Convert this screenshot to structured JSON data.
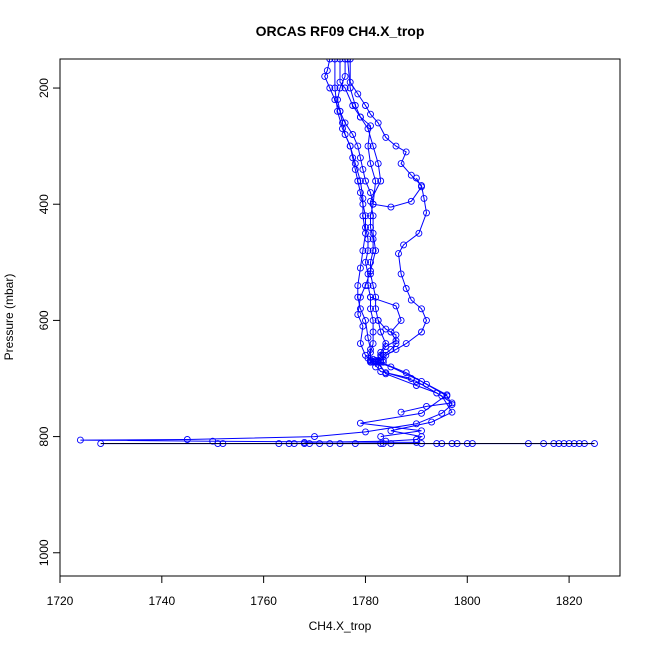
{
  "chart_data": {
    "type": "scatter",
    "title": "ORCAS RF09 CH4.X_trop",
    "xlabel": "CH4.X_trop",
    "ylabel": "Pressure (mbar)",
    "xlim": [
      1720,
      1830
    ],
    "ylim": [
      1040,
      150
    ],
    "y_reversed": true,
    "grid": false,
    "color": "#0000ff",
    "x_ticks": [
      1720,
      1740,
      1760,
      1780,
      1800,
      1820
    ],
    "y_ticks": [
      200,
      400,
      600,
      800,
      1000
    ],
    "series": [
      {
        "points": [
          [
            1773,
            150
          ],
          [
            1772.5,
            170
          ],
          [
            1772,
            180
          ],
          [
            1773,
            200
          ],
          [
            1774,
            220
          ],
          [
            1775,
            240
          ],
          [
            1775.5,
            260
          ],
          [
            1776,
            280
          ],
          [
            1777,
            300
          ],
          [
            1777.5,
            320
          ],
          [
            1778,
            340
          ],
          [
            1778.5,
            360
          ],
          [
            1779,
            380
          ],
          [
            1779.5,
            400
          ],
          [
            1780,
            420
          ],
          [
            1780,
            440
          ],
          [
            1780.5,
            460
          ],
          [
            1780.5,
            480
          ],
          [
            1780,
            500
          ],
          [
            1780.5,
            520
          ],
          [
            1780.5,
            540
          ],
          [
            1781,
            560
          ],
          [
            1781,
            580
          ],
          [
            1781.5,
            600
          ],
          [
            1781.5,
            620
          ],
          [
            1781.5,
            640
          ],
          [
            1781,
            655
          ],
          [
            1781,
            670
          ],
          [
            1783,
            672
          ],
          [
            1788,
            690
          ],
          [
            1792,
            710
          ],
          [
            1796,
            730
          ],
          [
            1797,
            745
          ],
          [
            1795,
            760
          ],
          [
            1790,
            778
          ],
          [
            1780,
            792
          ],
          [
            1770,
            800
          ],
          [
            1745,
            805
          ],
          [
            1724,
            806
          ],
          [
            1750,
            808
          ],
          [
            1790,
            810
          ],
          [
            1791,
            812
          ],
          [
            1728,
            812
          ],
          [
            1751,
            812
          ],
          [
            1752,
            812
          ],
          [
            1763,
            812
          ],
          [
            1765,
            812
          ],
          [
            1766,
            812
          ],
          [
            1768,
            812
          ],
          [
            1769,
            812
          ],
          [
            1771,
            812
          ],
          [
            1773,
            812
          ],
          [
            1775,
            812
          ],
          [
            1778,
            812
          ],
          [
            1783,
            812
          ],
          [
            1783.5,
            812
          ],
          [
            1785,
            812
          ],
          [
            1794,
            812
          ],
          [
            1795,
            812
          ],
          [
            1797,
            812
          ],
          [
            1798,
            812
          ],
          [
            1800,
            812
          ],
          [
            1801,
            812
          ],
          [
            1812,
            812
          ],
          [
            1815,
            812
          ],
          [
            1817,
            812
          ],
          [
            1818,
            812
          ],
          [
            1819,
            812
          ],
          [
            1820,
            812
          ],
          [
            1821,
            812
          ],
          [
            1822,
            812
          ],
          [
            1823,
            812
          ],
          [
            1825,
            812
          ]
        ]
      },
      {
        "points": [
          [
            1776,
            150
          ],
          [
            1776,
            180
          ],
          [
            1775,
            200
          ],
          [
            1774.5,
            220
          ],
          [
            1775,
            240
          ],
          [
            1776,
            260
          ],
          [
            1777.5,
            280
          ],
          [
            1778.5,
            300
          ],
          [
            1779,
            320
          ],
          [
            1779.5,
            340
          ],
          [
            1780,
            360
          ],
          [
            1781,
            380
          ],
          [
            1781.5,
            400
          ],
          [
            1781,
            420
          ],
          [
            1781,
            440
          ],
          [
            1781.5,
            460
          ],
          [
            1781.5,
            480
          ],
          [
            1781,
            500
          ],
          [
            1781,
            520
          ],
          [
            1781.5,
            540
          ],
          [
            1782,
            560
          ],
          [
            1782,
            580
          ],
          [
            1782.5,
            600
          ],
          [
            1783,
            620
          ],
          [
            1784,
            640
          ],
          [
            1783,
            655
          ],
          [
            1782,
            670
          ],
          [
            1784,
            690
          ],
          [
            1790,
            705
          ],
          [
            1795,
            730
          ],
          [
            1797,
            758
          ],
          [
            1793,
            775
          ],
          [
            1785,
            790
          ],
          [
            1791,
            800
          ],
          [
            1790,
            805
          ],
          [
            1784,
            808
          ],
          [
            1768,
            810
          ]
        ]
      },
      {
        "points": [
          [
            1775,
            150
          ],
          [
            1775,
            190
          ],
          [
            1776,
            200
          ],
          [
            1777.5,
            230
          ],
          [
            1779,
            250
          ],
          [
            1780.5,
            270
          ],
          [
            1781.5,
            300
          ],
          [
            1782.5,
            330
          ],
          [
            1783,
            360
          ],
          [
            1781,
            395
          ],
          [
            1781.5,
            420
          ],
          [
            1781.5,
            450
          ],
          [
            1782,
            480
          ],
          [
            1781,
            515
          ],
          [
            1780,
            540
          ],
          [
            1779,
            560
          ],
          [
            1778.5,
            590
          ],
          [
            1779.5,
            610
          ],
          [
            1779,
            640
          ],
          [
            1780,
            660
          ],
          [
            1781,
            668
          ],
          [
            1785,
            680
          ],
          [
            1791,
            705
          ],
          [
            1796,
            728
          ],
          [
            1791,
            760
          ],
          [
            1779,
            777
          ],
          [
            1791,
            790
          ],
          [
            1783,
            800
          ]
        ]
      },
      {
        "points": [
          [
            1777,
            150
          ],
          [
            1777,
            190
          ],
          [
            1778.5,
            210
          ],
          [
            1780,
            230
          ],
          [
            1781,
            245
          ],
          [
            1782.5,
            260
          ],
          [
            1784,
            285
          ],
          [
            1786,
            300
          ],
          [
            1788,
            310
          ],
          [
            1787,
            330
          ],
          [
            1789,
            350
          ],
          [
            1791,
            368
          ],
          [
            1791.5,
            390
          ],
          [
            1792,
            415
          ],
          [
            1790.5,
            450
          ],
          [
            1787.5,
            470
          ],
          [
            1786.5,
            485
          ],
          [
            1787,
            520
          ],
          [
            1788,
            545
          ],
          [
            1789,
            565
          ],
          [
            1791,
            580
          ],
          [
            1792,
            600
          ],
          [
            1791,
            620
          ],
          [
            1788,
            640
          ],
          [
            1786,
            650
          ],
          [
            1784,
            660
          ],
          [
            1782,
            672
          ],
          [
            1782,
            680
          ]
        ]
      },
      {
        "points": [
          [
            1774,
            150
          ],
          [
            1774,
            200
          ],
          [
            1774.5,
            240
          ],
          [
            1775.5,
            270
          ],
          [
            1777,
            300
          ],
          [
            1778,
            330
          ],
          [
            1779,
            360
          ],
          [
            1779.5,
            390
          ],
          [
            1779.5,
            420
          ],
          [
            1780,
            450
          ],
          [
            1779.5,
            480
          ],
          [
            1779,
            510
          ],
          [
            1778.5,
            540
          ],
          [
            1778.5,
            560
          ],
          [
            1779,
            580
          ],
          [
            1780,
            600
          ],
          [
            1780.5,
            630
          ],
          [
            1781,
            650
          ],
          [
            1780.5,
            665
          ],
          [
            1781.5,
            672
          ],
          [
            1783,
            688
          ],
          [
            1789,
            700
          ]
        ]
      },
      {
        "points": [
          [
            1776.5,
            150
          ],
          [
            1777,
            200
          ],
          [
            1778,
            230
          ],
          [
            1779,
            250
          ],
          [
            1781,
            265
          ],
          [
            1780.5,
            300
          ],
          [
            1781,
            330
          ],
          [
            1782,
            360
          ],
          [
            1781.5,
            400
          ],
          [
            1785,
            405
          ],
          [
            1789,
            395
          ],
          [
            1791,
            370
          ],
          [
            1790,
            355
          ]
        ]
      },
      {
        "points": [
          [
            1781,
            560
          ],
          [
            1786,
            575
          ],
          [
            1787,
            600
          ],
          [
            1785,
            620
          ],
          [
            1786,
            635
          ],
          [
            1784,
            645
          ],
          [
            1783,
            660
          ],
          [
            1783.5,
            668
          ],
          [
            1782.5,
            670
          ],
          [
            1781,
            672
          ]
        ]
      },
      {
        "points": [
          [
            1782.5,
            600
          ],
          [
            1784,
            615
          ],
          [
            1786,
            625
          ],
          [
            1786,
            640
          ],
          [
            1785,
            650
          ],
          [
            1783.5,
            660
          ],
          [
            1782.5,
            672
          ],
          [
            1784,
            692
          ],
          [
            1790,
            712
          ],
          [
            1794,
            725
          ],
          [
            1797,
            742
          ],
          [
            1792,
            748
          ],
          [
            1787,
            758
          ]
        ]
      },
      {
        "points": [
          [
            1782,
            669
          ],
          [
            1782.5,
            671
          ],
          [
            1783,
            668
          ],
          [
            1781.5,
            667
          ],
          [
            1782,
            672
          ],
          [
            1783.5,
            672
          ],
          [
            1781,
            670
          ]
        ]
      }
    ]
  }
}
